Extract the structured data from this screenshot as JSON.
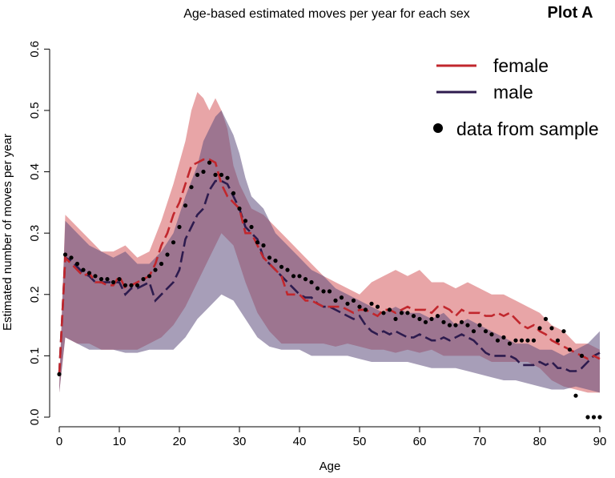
{
  "chart_data": {
    "type": "line",
    "title": "Age-based estimated moves per year for each sex",
    "panel_label": "Plot A",
    "xlabel": "Age",
    "ylabel": "Estimated number of moves per year",
    "xlim": [
      0,
      90
    ],
    "ylim": [
      0,
      0.62
    ],
    "xticks": [
      "0",
      "10",
      "20",
      "30",
      "40",
      "50",
      "60",
      "70",
      "80",
      "90"
    ],
    "yticks": [
      "0.0",
      "0.1",
      "0.2",
      "0.3",
      "0.4",
      "0.5",
      "0.6"
    ],
    "grid": false,
    "legend_position": "top-right",
    "legend": {
      "female": "female",
      "male": "male",
      "data": "data from sample"
    },
    "colors": {
      "female": "#c1272d",
      "male": "#2d1b4e",
      "female_band": "#d9696c",
      "male_band": "#5e4f7e",
      "data": "#000000"
    },
    "series": [
      {
        "name": "female",
        "x": [
          0,
          1,
          2,
          3,
          4,
          5,
          6,
          7,
          8,
          9,
          10,
          11,
          12,
          13,
          14,
          15,
          16,
          17,
          18,
          19,
          20,
          21,
          22,
          23,
          24,
          25,
          26,
          27,
          28,
          29,
          30,
          31,
          32,
          33,
          34,
          35,
          36,
          37,
          38,
          39,
          40,
          41,
          42,
          43,
          44,
          45,
          46,
          47,
          48,
          49,
          50,
          51,
          52,
          53,
          54,
          55,
          56,
          57,
          58,
          59,
          60,
          61,
          62,
          63,
          64,
          65,
          66,
          67,
          68,
          69,
          70,
          71,
          72,
          73,
          74,
          75,
          76,
          77,
          78,
          79,
          80,
          81,
          82,
          83,
          84,
          85,
          86,
          87,
          88,
          89,
          90
        ],
        "values": [
          0.07,
          0.26,
          0.25,
          0.24,
          0.23,
          0.235,
          0.22,
          0.22,
          0.215,
          0.215,
          0.23,
          0.21,
          0.215,
          0.22,
          0.225,
          0.23,
          0.25,
          0.28,
          0.3,
          0.33,
          0.35,
          0.38,
          0.41,
          0.415,
          0.42,
          0.42,
          0.415,
          0.38,
          0.36,
          0.35,
          0.34,
          0.3,
          0.3,
          0.28,
          0.26,
          0.25,
          0.24,
          0.23,
          0.2,
          0.2,
          0.2,
          0.19,
          0.19,
          0.185,
          0.18,
          0.18,
          0.18,
          0.18,
          0.175,
          0.17,
          0.175,
          0.175,
          0.17,
          0.165,
          0.175,
          0.175,
          0.17,
          0.175,
          0.18,
          0.175,
          0.175,
          0.175,
          0.17,
          0.18,
          0.18,
          0.175,
          0.165,
          0.175,
          0.17,
          0.17,
          0.17,
          0.165,
          0.165,
          0.17,
          0.165,
          0.17,
          0.16,
          0.15,
          0.145,
          0.15,
          0.14,
          0.135,
          0.125,
          0.12,
          0.115,
          0.11,
          0.105,
          0.1,
          0.095,
          0.1,
          0.095
        ]
      },
      {
        "name": "male",
        "x": [
          0,
          1,
          2,
          3,
          4,
          5,
          6,
          7,
          8,
          9,
          10,
          11,
          12,
          13,
          14,
          15,
          16,
          17,
          18,
          19,
          20,
          21,
          22,
          23,
          24,
          25,
          26,
          27,
          28,
          29,
          30,
          31,
          32,
          33,
          34,
          35,
          36,
          37,
          38,
          39,
          40,
          41,
          42,
          43,
          44,
          45,
          46,
          47,
          48,
          49,
          50,
          51,
          52,
          53,
          54,
          55,
          56,
          57,
          58,
          59,
          60,
          61,
          62,
          63,
          64,
          65,
          66,
          67,
          68,
          69,
          70,
          71,
          72,
          73,
          74,
          75,
          76,
          77,
          78,
          79,
          80,
          81,
          82,
          83,
          84,
          85,
          86,
          87,
          88,
          89,
          90
        ],
        "values": [
          0.07,
          0.26,
          0.255,
          0.245,
          0.235,
          0.23,
          0.22,
          0.22,
          0.22,
          0.22,
          0.22,
          0.2,
          0.21,
          0.21,
          0.215,
          0.22,
          0.19,
          0.2,
          0.21,
          0.22,
          0.24,
          0.29,
          0.31,
          0.33,
          0.34,
          0.37,
          0.385,
          0.385,
          0.38,
          0.36,
          0.34,
          0.31,
          0.3,
          0.29,
          0.26,
          0.25,
          0.24,
          0.23,
          0.22,
          0.21,
          0.2,
          0.195,
          0.195,
          0.185,
          0.18,
          0.18,
          0.175,
          0.17,
          0.165,
          0.16,
          0.165,
          0.15,
          0.14,
          0.135,
          0.14,
          0.135,
          0.14,
          0.135,
          0.13,
          0.13,
          0.135,
          0.13,
          0.125,
          0.125,
          0.13,
          0.125,
          0.13,
          0.135,
          0.13,
          0.125,
          0.115,
          0.105,
          0.1,
          0.1,
          0.1,
          0.1,
          0.095,
          0.085,
          0.085,
          0.085,
          0.09,
          0.085,
          0.09,
          0.08,
          0.08,
          0.075,
          0.075,
          0.08,
          0.09,
          0.1,
          0.105
        ]
      },
      {
        "name": "female-upper",
        "x": [
          0,
          1,
          3,
          5,
          7,
          9,
          11,
          13,
          15,
          17,
          19,
          21,
          22,
          23,
          24,
          25,
          26,
          27,
          28,
          29,
          30,
          31,
          32,
          34,
          36,
          38,
          40,
          42,
          44,
          46,
          48,
          50,
          52,
          54,
          56,
          58,
          60,
          62,
          64,
          66,
          68,
          70,
          72,
          74,
          76,
          78,
          80,
          82,
          84,
          86,
          88,
          90
        ],
        "values": [
          0.05,
          0.33,
          0.31,
          0.29,
          0.27,
          0.27,
          0.28,
          0.26,
          0.27,
          0.32,
          0.38,
          0.45,
          0.5,
          0.53,
          0.52,
          0.5,
          0.52,
          0.5,
          0.47,
          0.41,
          0.38,
          0.36,
          0.34,
          0.33,
          0.31,
          0.29,
          0.27,
          0.25,
          0.23,
          0.22,
          0.21,
          0.2,
          0.22,
          0.23,
          0.24,
          0.23,
          0.24,
          0.22,
          0.22,
          0.21,
          0.22,
          0.21,
          0.2,
          0.2,
          0.19,
          0.18,
          0.17,
          0.15,
          0.14,
          0.12,
          0.12,
          0.11
        ]
      },
      {
        "name": "female-lower",
        "x": [
          0,
          1,
          3,
          5,
          7,
          9,
          11,
          13,
          15,
          17,
          19,
          21,
          23,
          25,
          27,
          29,
          31,
          33,
          35,
          37,
          40,
          42,
          44,
          46,
          48,
          50,
          52,
          54,
          56,
          58,
          60,
          62,
          64,
          66,
          68,
          70,
          72,
          74,
          76,
          78,
          80,
          82,
          84,
          86,
          88,
          90
        ],
        "values": [
          0.04,
          0.13,
          0.12,
          0.12,
          0.11,
          0.11,
          0.11,
          0.11,
          0.12,
          0.13,
          0.15,
          0.18,
          0.22,
          0.26,
          0.3,
          0.28,
          0.22,
          0.17,
          0.14,
          0.12,
          0.12,
          0.12,
          0.12,
          0.115,
          0.12,
          0.115,
          0.11,
          0.11,
          0.105,
          0.11,
          0.105,
          0.11,
          0.1,
          0.1,
          0.1,
          0.1,
          0.09,
          0.09,
          0.09,
          0.09,
          0.08,
          0.06,
          0.05,
          0.045,
          0.04,
          0.04
        ]
      },
      {
        "name": "male-upper",
        "x": [
          0,
          1,
          3,
          5,
          7,
          9,
          11,
          13,
          15,
          17,
          19,
          21,
          23,
          24,
          25,
          26,
          27,
          28,
          29,
          30,
          31,
          32,
          34,
          36,
          38,
          40,
          42,
          44,
          46,
          48,
          50,
          52,
          54,
          56,
          58,
          60,
          62,
          64,
          66,
          68,
          70,
          72,
          74,
          76,
          78,
          80,
          82,
          84,
          86,
          88,
          90
        ],
        "values": [
          0.05,
          0.32,
          0.3,
          0.28,
          0.27,
          0.26,
          0.27,
          0.25,
          0.25,
          0.27,
          0.3,
          0.36,
          0.41,
          0.45,
          0.47,
          0.49,
          0.5,
          0.48,
          0.46,
          0.43,
          0.39,
          0.36,
          0.34,
          0.3,
          0.28,
          0.26,
          0.24,
          0.23,
          0.21,
          0.2,
          0.19,
          0.18,
          0.17,
          0.18,
          0.17,
          0.17,
          0.16,
          0.17,
          0.15,
          0.16,
          0.15,
          0.14,
          0.13,
          0.12,
          0.12,
          0.11,
          0.11,
          0.1,
          0.11,
          0.12,
          0.14
        ]
      },
      {
        "name": "male-lower",
        "x": [
          0,
          1,
          3,
          5,
          7,
          9,
          11,
          13,
          15,
          17,
          19,
          21,
          23,
          25,
          27,
          29,
          31,
          33,
          35,
          37,
          40,
          42,
          44,
          46,
          48,
          50,
          52,
          54,
          56,
          58,
          60,
          62,
          64,
          66,
          68,
          70,
          72,
          74,
          76,
          78,
          80,
          82,
          84,
          86,
          88,
          90
        ],
        "values": [
          0.04,
          0.13,
          0.12,
          0.11,
          0.11,
          0.11,
          0.105,
          0.105,
          0.11,
          0.11,
          0.11,
          0.13,
          0.16,
          0.18,
          0.2,
          0.19,
          0.16,
          0.13,
          0.115,
          0.11,
          0.11,
          0.1,
          0.1,
          0.1,
          0.1,
          0.095,
          0.09,
          0.09,
          0.09,
          0.09,
          0.085,
          0.08,
          0.08,
          0.08,
          0.075,
          0.07,
          0.065,
          0.06,
          0.06,
          0.055,
          0.05,
          0.045,
          0.045,
          0.05,
          0.045,
          0.04
        ]
      },
      {
        "name": "data from sample",
        "type": "scatter",
        "x": [
          0,
          1,
          2,
          3,
          4,
          5,
          6,
          7,
          8,
          9,
          10,
          11,
          12,
          13,
          14,
          15,
          16,
          17,
          18,
          19,
          20,
          21,
          22,
          23,
          24,
          25,
          26,
          27,
          28,
          29,
          30,
          31,
          32,
          33,
          34,
          35,
          36,
          37,
          38,
          39,
          40,
          41,
          42,
          43,
          44,
          45,
          46,
          47,
          48,
          49,
          50,
          51,
          52,
          53,
          54,
          55,
          56,
          57,
          58,
          59,
          60,
          61,
          62,
          63,
          64,
          65,
          66,
          67,
          68,
          69,
          70,
          71,
          72,
          73,
          74,
          75,
          76,
          77,
          78,
          79,
          80,
          81,
          82,
          83,
          84,
          85,
          86,
          87,
          88,
          89,
          90
        ],
        "values": [
          0.07,
          0.265,
          0.26,
          0.25,
          0.24,
          0.235,
          0.23,
          0.225,
          0.225,
          0.22,
          0.225,
          0.215,
          0.215,
          0.215,
          0.225,
          0.23,
          0.24,
          0.25,
          0.265,
          0.285,
          0.31,
          0.345,
          0.375,
          0.395,
          0.4,
          0.415,
          0.395,
          0.395,
          0.39,
          0.365,
          0.34,
          0.32,
          0.31,
          0.285,
          0.28,
          0.26,
          0.255,
          0.245,
          0.24,
          0.23,
          0.23,
          0.225,
          0.22,
          0.21,
          0.205,
          0.205,
          0.19,
          0.195,
          0.185,
          0.19,
          0.18,
          0.175,
          0.185,
          0.18,
          0.17,
          0.175,
          0.16,
          0.17,
          0.17,
          0.165,
          0.16,
          0.155,
          0.16,
          0.165,
          0.155,
          0.15,
          0.15,
          0.155,
          0.15,
          0.14,
          0.15,
          0.14,
          0.135,
          0.125,
          0.13,
          0.12,
          0.125,
          0.125,
          0.125,
          0.125,
          0.145,
          0.16,
          0.145,
          0.125,
          0.14,
          0.11,
          0.035,
          0.1,
          0.0,
          0.0,
          0.0
        ]
      }
    ]
  }
}
